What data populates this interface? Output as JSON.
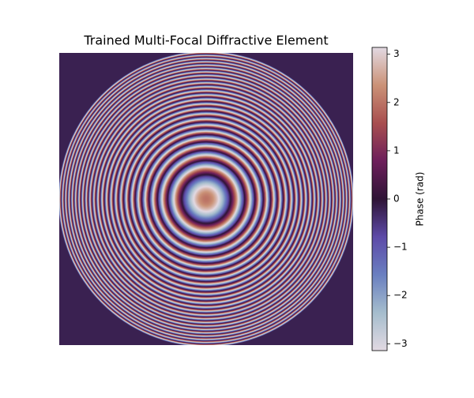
{
  "chart_data": {
    "type": "image",
    "title": "Trained Multi-Focal Diffractive Element",
    "colorbar": {
      "label": "Phase (rad)",
      "lim": [
        -3.1416,
        3.1416
      ],
      "ticks": [
        {
          "value": -3,
          "label": "−3"
        },
        {
          "value": -2,
          "label": "−2"
        },
        {
          "value": -1,
          "label": "−1"
        },
        0,
        1,
        2,
        3
      ],
      "colors": [
        "#e2d9e2",
        "#a5bdcd",
        "#6a7fc0",
        "#5d4aa8",
        "#2f1436",
        "#6d1f5b",
        "#a84e4f",
        "#cb9277",
        "#e2d9e2"
      ]
    }
  }
}
